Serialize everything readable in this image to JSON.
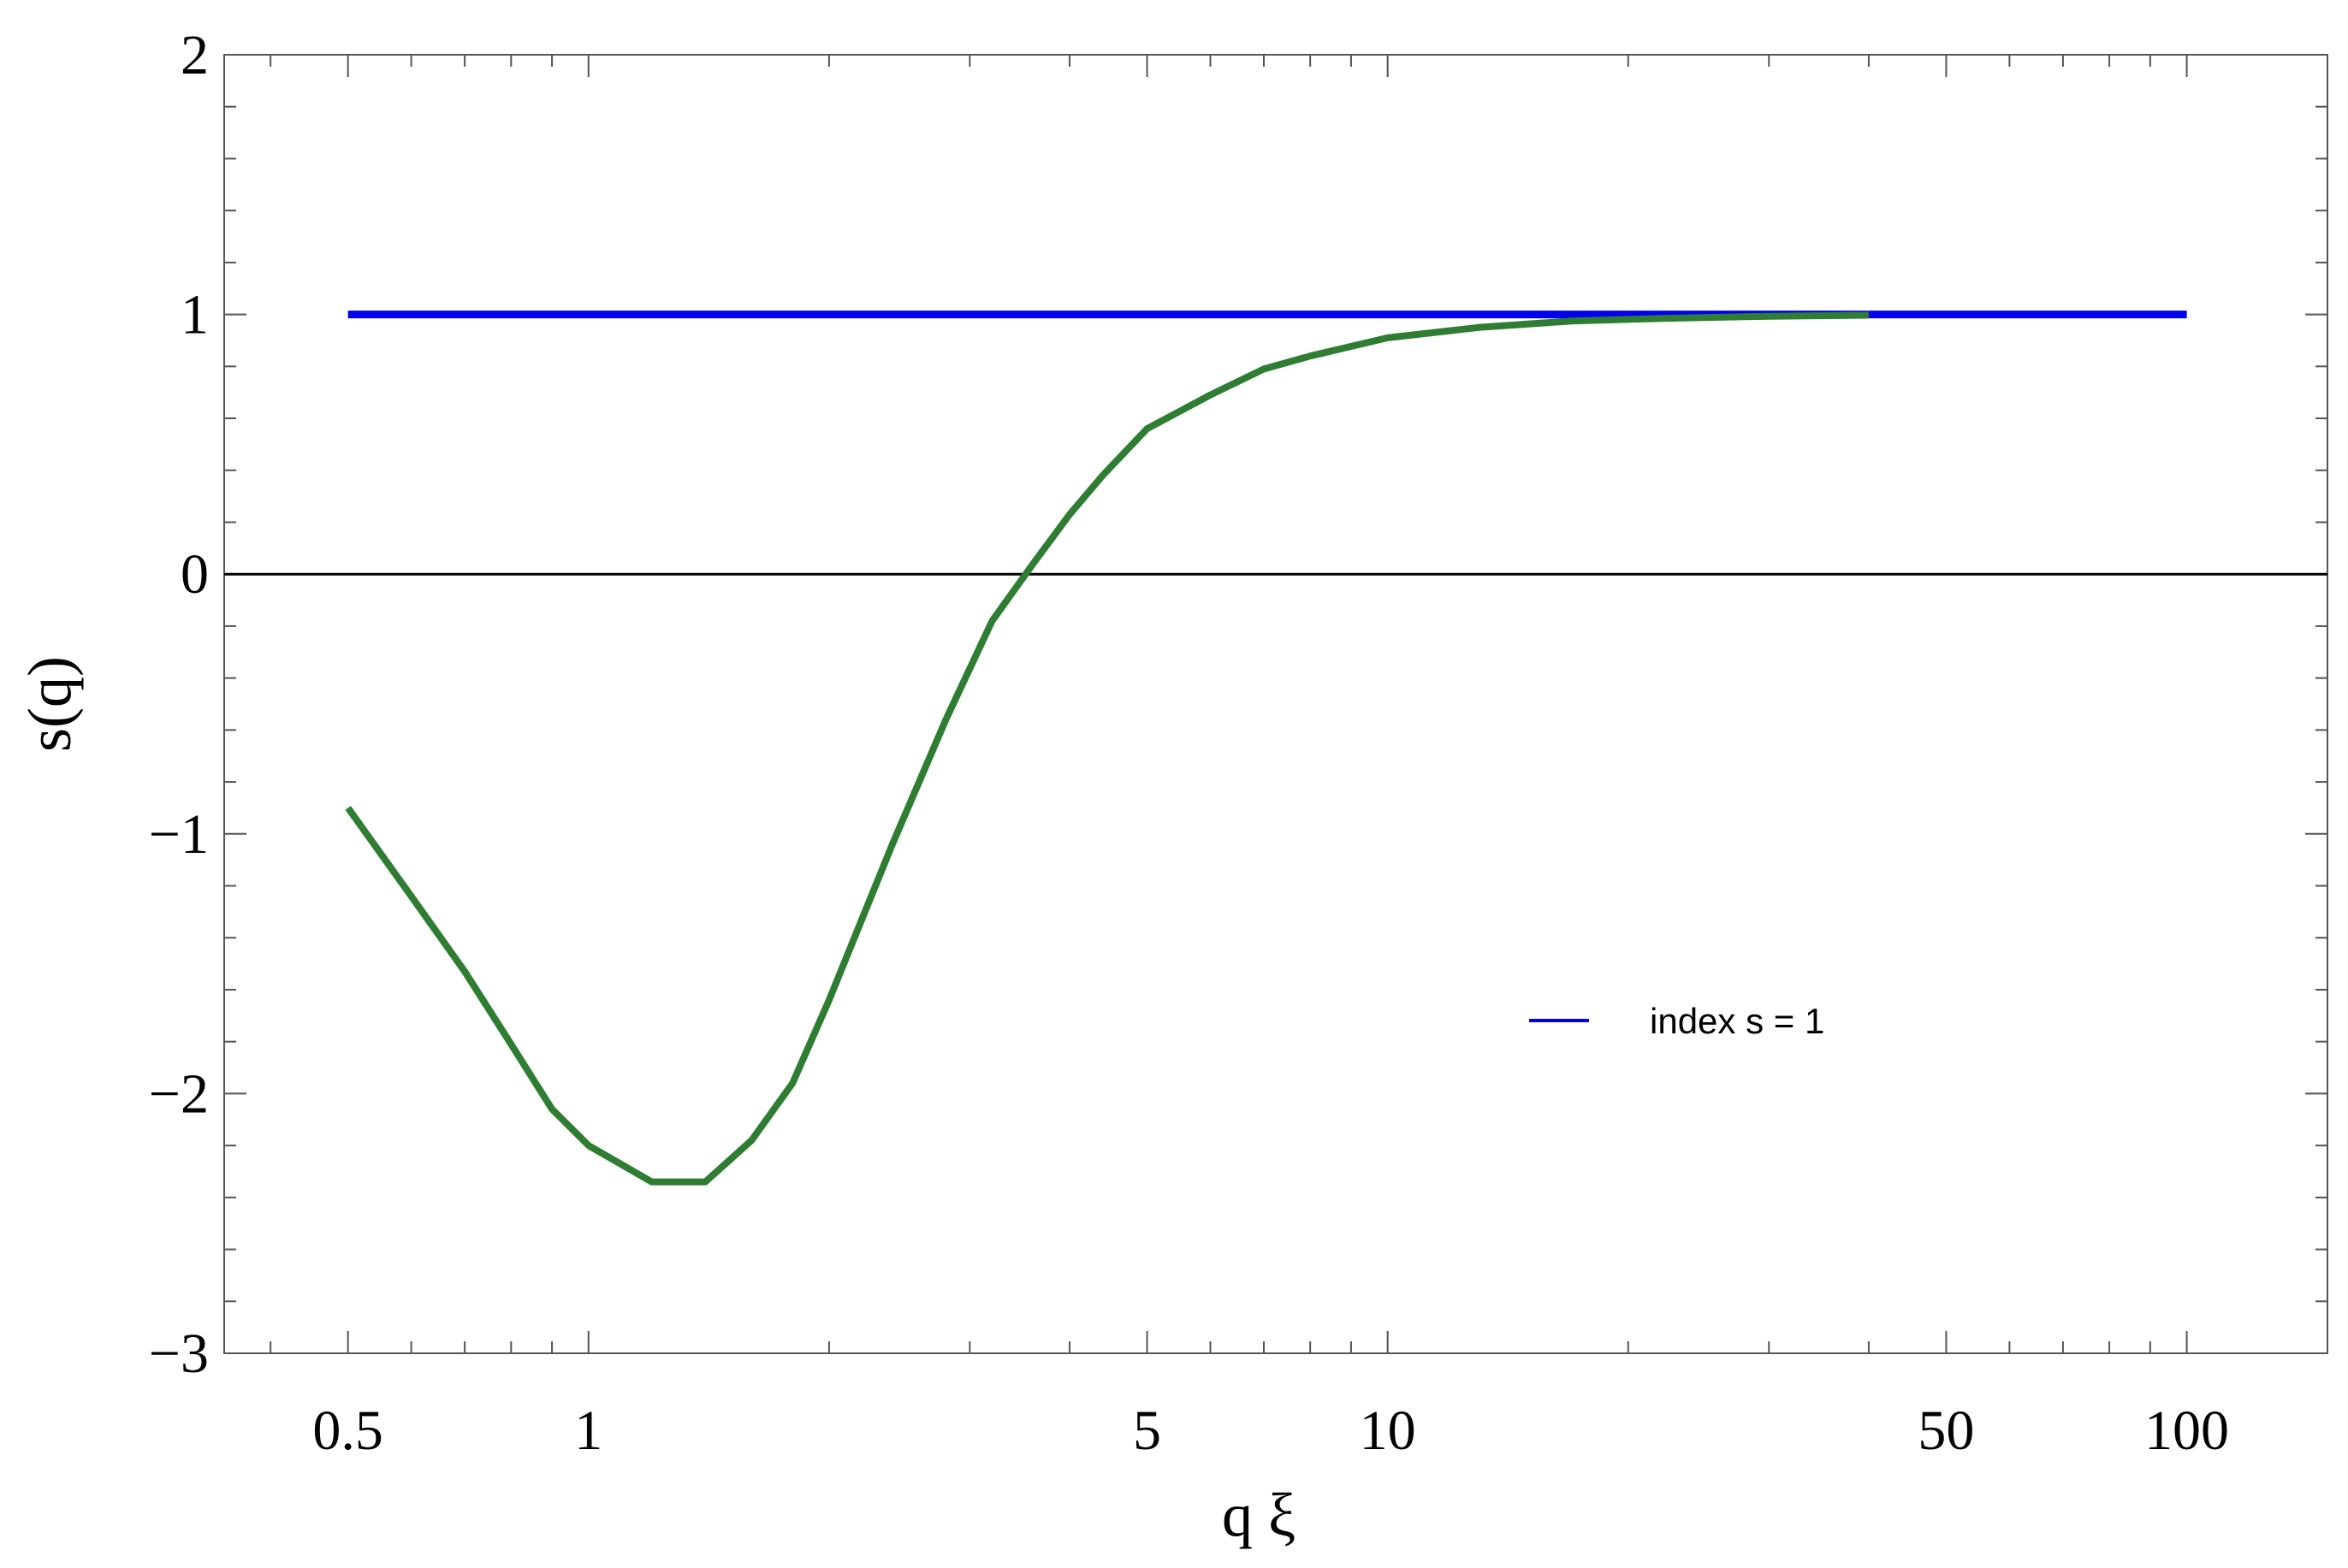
{
  "chart_data": {
    "type": "line",
    "title": "",
    "xlabel": "q ξ",
    "ylabel": "s(q)",
    "xscale": "log",
    "xlim": [
      0.35,
      150
    ],
    "ylim": [
      -3,
      2
    ],
    "x_ticks": [
      {
        "value": 0.5,
        "label": "0.5"
      },
      {
        "value": 1,
        "label": "1"
      },
      {
        "value": 5,
        "label": "5"
      },
      {
        "value": 10,
        "label": "10"
      },
      {
        "value": 50,
        "label": "50"
      },
      {
        "value": 100,
        "label": "100"
      }
    ],
    "y_ticks": [
      {
        "value": -3,
        "label": "−3"
      },
      {
        "value": -2,
        "label": "−2"
      },
      {
        "value": -1,
        "label": "−1"
      },
      {
        "value": 0,
        "label": "0"
      },
      {
        "value": 1,
        "label": "1"
      },
      {
        "value": 2,
        "label": "2"
      }
    ],
    "grid": false,
    "reference_line": {
      "y": 0,
      "color": "#000000"
    },
    "legend": {
      "position": "center-right",
      "entries": [
        {
          "label": "index s = 1",
          "color": "#0000ee"
        }
      ]
    },
    "series": [
      {
        "name": "index s = 1",
        "color": "#0000ee",
        "x": [
          0.5,
          100
        ],
        "y": [
          1,
          1
        ]
      },
      {
        "color": "#2e7d32",
        "x": [
          0.5,
          0.6,
          0.7,
          0.8,
          0.9,
          1.0,
          1.2,
          1.4,
          1.6,
          1.8,
          2.0,
          2.4,
          2.8,
          3.2,
          3.6,
          4.0,
          4.4,
          5.0,
          6.0,
          7.0,
          8.0,
          10.0,
          13.0,
          17.0,
          22.0,
          30.0,
          40.0
        ],
        "y": [
          -0.9,
          -1.24,
          -1.53,
          -1.81,
          -2.06,
          -2.2,
          -2.34,
          -2.34,
          -2.18,
          -1.96,
          -1.64,
          -1.04,
          -0.56,
          -0.18,
          0.04,
          0.23,
          0.38,
          0.56,
          0.69,
          0.79,
          0.84,
          0.91,
          0.95,
          0.975,
          0.985,
          0.993,
          0.997
        ]
      }
    ]
  }
}
